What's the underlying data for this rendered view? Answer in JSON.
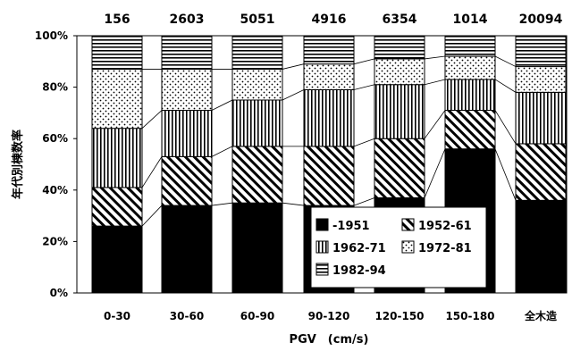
{
  "chart_data": {
    "type": "bar",
    "stacked": true,
    "percent": true,
    "categories": [
      "0-30",
      "30-60",
      "60-90",
      "90-120",
      "120-150",
      "150-180",
      "全木造"
    ],
    "counts": [
      "156",
      "2603",
      "5051",
      "4916",
      "6354",
      "1014",
      "20094"
    ],
    "series": [
      {
        "name": "-1951",
        "pattern": "solid-black",
        "values": [
          26,
          34,
          35,
          34,
          37,
          56,
          36
        ]
      },
      {
        "name": "1952-61",
        "pattern": "diagonal",
        "values": [
          15,
          19,
          22,
          23,
          23,
          15,
          22
        ]
      },
      {
        "name": "1962-71",
        "pattern": "vertical",
        "values": [
          23,
          18,
          18,
          22,
          21,
          12,
          20
        ]
      },
      {
        "name": "1972-81",
        "pattern": "dots",
        "values": [
          23,
          16,
          12,
          10,
          10,
          9,
          10
        ]
      },
      {
        "name": "1982-94",
        "pattern": "horizontal",
        "values": [
          13,
          13,
          13,
          11,
          9,
          8,
          12
        ]
      }
    ],
    "xlabel": "PGV　(cm/s)",
    "ylabel": "年代別棟数率",
    "ylim": [
      0,
      100
    ],
    "yticks": [
      "0%",
      "20%",
      "40%",
      "60%",
      "80%",
      "100%"
    ],
    "legend": "inside-bottom-right",
    "grid": false
  }
}
